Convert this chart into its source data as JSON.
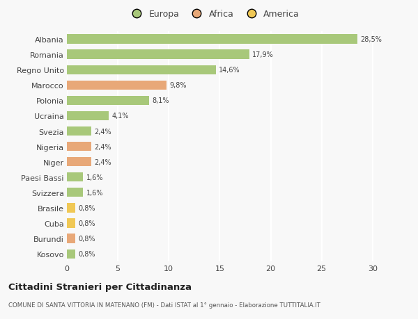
{
  "categories": [
    "Albania",
    "Romania",
    "Regno Unito",
    "Marocco",
    "Polonia",
    "Ucraina",
    "Svezia",
    "Nigeria",
    "Niger",
    "Paesi Bassi",
    "Svizzera",
    "Brasile",
    "Cuba",
    "Burundi",
    "Kosovo"
  ],
  "values": [
    28.5,
    17.9,
    14.6,
    9.8,
    8.1,
    4.1,
    2.4,
    2.4,
    2.4,
    1.6,
    1.6,
    0.8,
    0.8,
    0.8,
    0.8
  ],
  "labels": [
    "28,5%",
    "17,9%",
    "14,6%",
    "9,8%",
    "8,1%",
    "4,1%",
    "2,4%",
    "2,4%",
    "2,4%",
    "1,6%",
    "1,6%",
    "0,8%",
    "0,8%",
    "0,8%",
    "0,8%"
  ],
  "continents": [
    "Europa",
    "Europa",
    "Europa",
    "Africa",
    "Europa",
    "Europa",
    "Europa",
    "Africa",
    "Africa",
    "Europa",
    "Europa",
    "America",
    "America",
    "Africa",
    "Europa"
  ],
  "colors": {
    "Europa": "#a8c87a",
    "Africa": "#e8a878",
    "America": "#f0c855"
  },
  "title": "Cittadini Stranieri per Cittadinanza",
  "subtitle": "COMUNE DI SANTA VITTORIA IN MATENANO (FM) - Dati ISTAT al 1° gennaio - Elaborazione TUTTITALIA.IT",
  "xlim": [
    0,
    32
  ],
  "xticks": [
    0,
    5,
    10,
    15,
    20,
    25,
    30
  ],
  "background_color": "#f8f8f8",
  "grid_color": "#ffffff",
  "bar_height": 0.6,
  "figwidth": 6.0,
  "figheight": 4.6,
  "dpi": 100
}
